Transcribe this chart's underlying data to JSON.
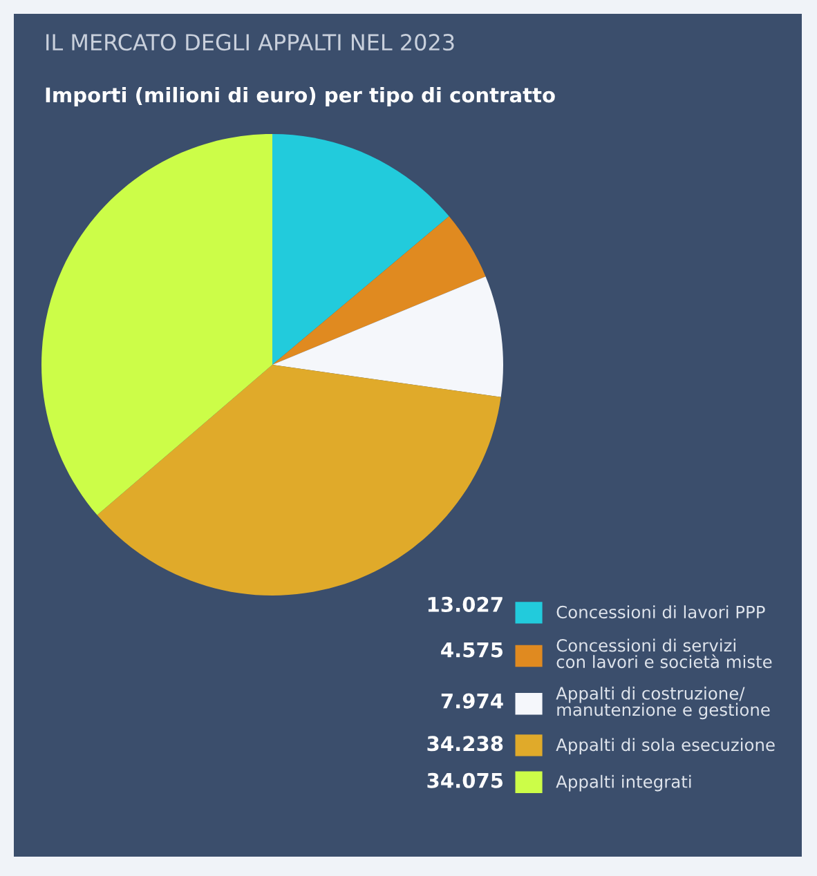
{
  "chart_data": {
    "type": "pie",
    "title": "IL MERCATO DEGLI APPALTI NEL 2023",
    "subtitle": "Importi (milioni di euro) per tipo di contratto",
    "categories": [
      "Concessioni di lavori PPP",
      "Concessioni di servizi\ncon lavori e società miste",
      "Appalti di costruzione/\nmanutenzione e gestione",
      "Appalti di sola esecuzione",
      "Appalti integrati"
    ],
    "values": [
      13027,
      4575,
      7974,
      34238,
      34075
    ],
    "value_labels": [
      "13.027",
      "4.575",
      "7.974",
      "34.238",
      "34.075"
    ],
    "colors": [
      "#22cbdc",
      "#e08a20",
      "#f5f7fb",
      "#e0aa2a",
      "#ccfd48"
    ],
    "legend": "bottom right"
  }
}
